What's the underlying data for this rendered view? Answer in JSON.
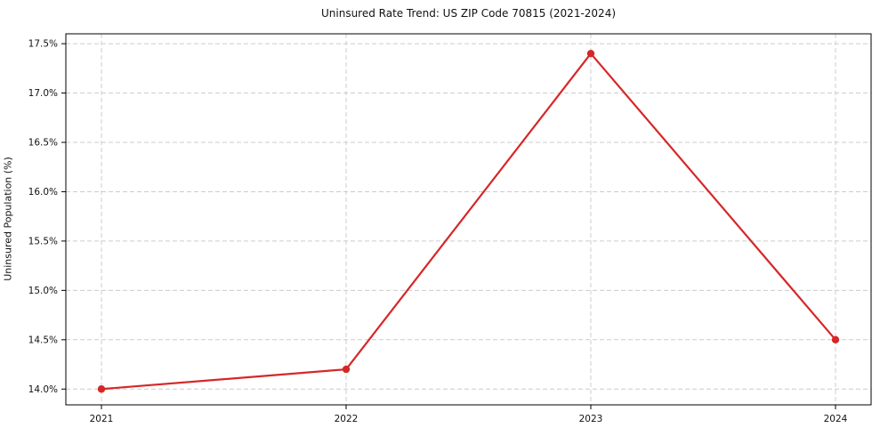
{
  "chart_data": {
    "type": "line",
    "title": "Uninsured Rate Trend: US ZIP Code 70815 (2021-2024)",
    "xlabel": "",
    "ylabel": "Uninsured Population (%)",
    "categories": [
      "2021",
      "2022",
      "2023",
      "2024"
    ],
    "series": [
      {
        "name": "Uninsured Rate",
        "values": [
          14.0,
          14.2,
          17.4,
          14.5
        ]
      }
    ],
    "y_ticks": [
      14.0,
      14.5,
      15.0,
      15.5,
      16.0,
      16.5,
      17.0,
      17.5
    ],
    "y_tick_suffix": "%",
    "ylim": [
      13.84,
      17.6
    ],
    "grid": "on",
    "grid_style": "dashed",
    "legend_position": "none",
    "colors": {
      "line": "#d62728",
      "marker": "#d62728",
      "grid": "#cccccc",
      "spine": "#000000",
      "tick_text": "#111111",
      "background": "#ffffff"
    }
  }
}
